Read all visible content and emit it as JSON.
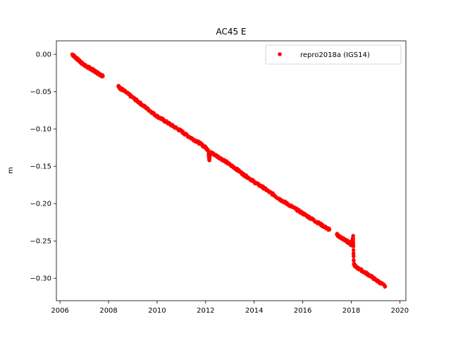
{
  "chart_data": {
    "type": "scatter",
    "title": "AC45 E",
    "xlabel": "",
    "ylabel": "m",
    "xlim": [
      2005.85,
      2020.25
    ],
    "ylim": [
      -0.33,
      0.018
    ],
    "xticks": [
      2006,
      2008,
      2010,
      2012,
      2014,
      2016,
      2018,
      2020
    ],
    "xtick_labels": [
      "2006",
      "2008",
      "2010",
      "2012",
      "2014",
      "2016",
      "2018",
      "2020"
    ],
    "yticks": [
      0.0,
      -0.05,
      -0.1,
      -0.15,
      -0.2,
      -0.25,
      -0.3
    ],
    "ytick_labels": [
      "0.00",
      "−0.05",
      "−0.10",
      "−0.15",
      "−0.20",
      "−0.25",
      "−0.30"
    ],
    "grid": false,
    "legend_position": "top-right",
    "marker_color": "#ff0000",
    "series": [
      {
        "name": "repro2018a (IGS14)",
        "color": "#ff0000",
        "x": [
          2006.5,
          2006.6,
          2006.7,
          2006.8,
          2006.9,
          2007.0,
          2007.1,
          2007.2,
          2007.3,
          2007.4,
          2007.5,
          2007.6,
          2007.7,
          2007.77,
          2008.4,
          2008.5,
          2008.6,
          2008.8,
          2009.0,
          2009.2,
          2009.4,
          2009.6,
          2009.8,
          2010.0,
          2010.2,
          2010.4,
          2010.6,
          2010.8,
          2011.0,
          2011.2,
          2011.4,
          2011.6,
          2011.8,
          2012.0,
          2012.1,
          2012.15,
          2012.2,
          2012.4,
          2012.6,
          2012.8,
          2013.0,
          2013.2,
          2013.4,
          2013.6,
          2013.8,
          2014.0,
          2014.2,
          2014.4,
          2014.6,
          2014.8,
          2015.0,
          2015.2,
          2015.4,
          2015.6,
          2015.8,
          2016.0,
          2016.2,
          2016.4,
          2016.6,
          2016.8,
          2017.0,
          2017.1,
          2017.4,
          2017.5,
          2017.6,
          2017.7,
          2017.8,
          2017.9,
          2018.0,
          2018.08,
          2018.1,
          2018.2,
          2018.4,
          2018.6,
          2018.8,
          2019.0,
          2019.2,
          2019.4
        ],
        "y": [
          0.0,
          -0.003,
          -0.006,
          -0.009,
          -0.012,
          -0.014,
          -0.017,
          -0.018,
          -0.02,
          -0.022,
          -0.024,
          -0.026,
          -0.028,
          -0.029,
          -0.043,
          -0.046,
          -0.048,
          -0.053,
          -0.058,
          -0.063,
          -0.068,
          -0.073,
          -0.078,
          -0.083,
          -0.087,
          -0.091,
          -0.095,
          -0.099,
          -0.103,
          -0.108,
          -0.112,
          -0.116,
          -0.12,
          -0.125,
          -0.128,
          -0.142,
          -0.131,
          -0.135,
          -0.139,
          -0.143,
          -0.148,
          -0.152,
          -0.157,
          -0.162,
          -0.166,
          -0.171,
          -0.175,
          -0.179,
          -0.184,
          -0.188,
          -0.193,
          -0.197,
          -0.201,
          -0.205,
          -0.209,
          -0.213,
          -0.217,
          -0.221,
          -0.225,
          -0.229,
          -0.233,
          -0.235,
          -0.241,
          -0.244,
          -0.246,
          -0.248,
          -0.25,
          -0.252,
          -0.255,
          -0.243,
          -0.281,
          -0.285,
          -0.289,
          -0.293,
          -0.297,
          -0.302,
          -0.306,
          -0.311
        ]
      }
    ]
  }
}
